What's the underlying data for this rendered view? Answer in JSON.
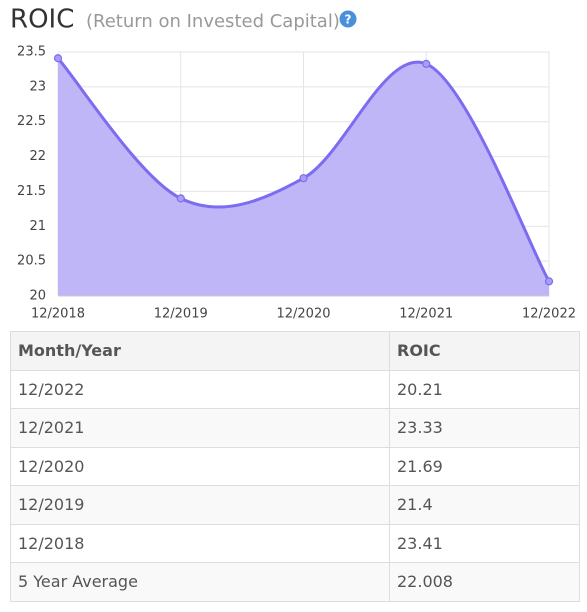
{
  "chart_data": {
    "type": "line",
    "title": "ROIC",
    "subtitle": "(Return on Invested Capital)",
    "help_icon": "?",
    "categories": [
      "12/2018",
      "12/2019",
      "12/2020",
      "12/2021",
      "12/2022"
    ],
    "series": [
      {
        "name": "ROIC",
        "color": "#7b6cf0",
        "values": [
          23.41,
          21.4,
          21.69,
          23.33,
          20.21
        ]
      }
    ],
    "ylim": [
      20,
      23.5
    ],
    "yticks": [
      20,
      20.5,
      21,
      21.5,
      22,
      22.5,
      23,
      23.5
    ],
    "grid": true,
    "fill": "#bfb6f8"
  },
  "table": {
    "header": [
      "Month/Year",
      "ROIC"
    ],
    "rows": [
      [
        "12/2022",
        "20.21"
      ],
      [
        "12/2021",
        "23.33"
      ],
      [
        "12/2020",
        "21.69"
      ],
      [
        "12/2019",
        "21.4"
      ],
      [
        "12/2018",
        "23.41"
      ],
      [
        "5 Year Average",
        "22.008"
      ]
    ]
  }
}
